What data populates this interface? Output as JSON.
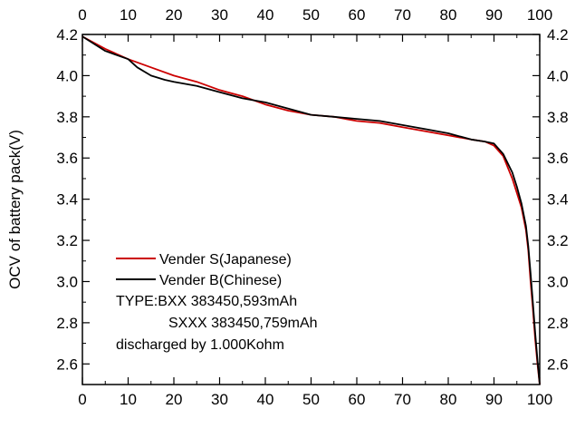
{
  "chart_data": {
    "type": "line",
    "title": "",
    "xlabel": "",
    "ylabel": "OCV of battery pack(V)",
    "xlim": [
      0,
      100
    ],
    "ylim": [
      2.5,
      4.2
    ],
    "x_ticks": [
      0,
      10,
      20,
      30,
      40,
      50,
      60,
      70,
      80,
      90,
      100
    ],
    "y_ticks": [
      2.6,
      2.8,
      3.0,
      3.2,
      3.4,
      3.6,
      3.8,
      4.0,
      4.2
    ],
    "y_tick_labels": [
      "2.6",
      "2.8",
      "3.0",
      "3.2",
      "3.4",
      "3.6",
      "3.8",
      "4.0",
      "4.2"
    ],
    "grid": false,
    "legend_position": "lower-left",
    "series": [
      {
        "name": "Vender S(Japanese)",
        "color": "#cc0000",
        "x": [
          0,
          5,
          10,
          15,
          20,
          25,
          30,
          35,
          40,
          45,
          50,
          55,
          60,
          65,
          70,
          75,
          80,
          85,
          88,
          90,
          92,
          94,
          95,
          96,
          97,
          97.5,
          98,
          98.5,
          99,
          99.5,
          100
        ],
        "y": [
          4.19,
          4.13,
          4.08,
          4.04,
          4.0,
          3.97,
          3.93,
          3.9,
          3.86,
          3.83,
          3.81,
          3.8,
          3.78,
          3.77,
          3.75,
          3.73,
          3.71,
          3.69,
          3.68,
          3.66,
          3.61,
          3.5,
          3.43,
          3.36,
          3.25,
          3.15,
          3.0,
          2.87,
          2.72,
          2.6,
          2.5
        ]
      },
      {
        "name": "Vender B(Chinese)",
        "color": "#000000",
        "x": [
          0,
          5,
          10,
          12,
          15,
          18,
          20,
          25,
          30,
          35,
          40,
          45,
          50,
          55,
          60,
          65,
          70,
          75,
          80,
          85,
          88,
          90,
          92,
          94,
          95,
          96,
          97,
          97.5,
          98,
          98.5,
          99,
          99.5,
          100
        ],
        "y": [
          4.19,
          4.12,
          4.08,
          4.04,
          4.0,
          3.98,
          3.97,
          3.95,
          3.92,
          3.89,
          3.87,
          3.84,
          3.81,
          3.8,
          3.79,
          3.78,
          3.76,
          3.74,
          3.72,
          3.69,
          3.68,
          3.67,
          3.62,
          3.53,
          3.46,
          3.38,
          3.27,
          3.17,
          3.04,
          2.9,
          2.75,
          2.62,
          2.5
        ]
      }
    ],
    "annotations": [
      "TYPE:BXX 383450,593mAh",
      "SXXX 383450,759mAh",
      "discharged by 1.000Kohm"
    ]
  }
}
